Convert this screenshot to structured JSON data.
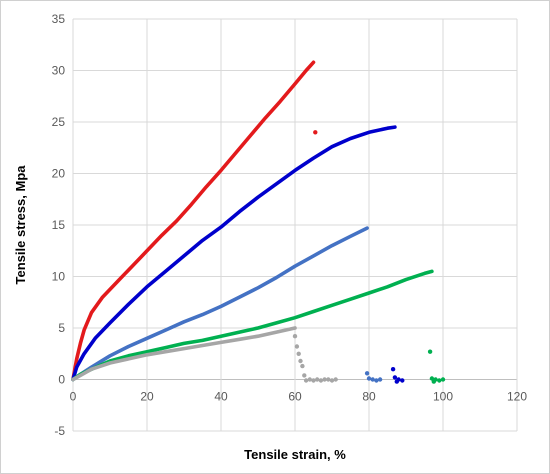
{
  "chart_data": {
    "type": "scatter",
    "title": "",
    "xlabel": "Tensile strain, %",
    "ylabel": "Tensile stress, Mpa",
    "xlim": [
      0,
      120
    ],
    "ylim": [
      -5,
      35
    ],
    "x_ticks": [
      0,
      20,
      40,
      60,
      80,
      100,
      120
    ],
    "y_ticks": [
      -5,
      0,
      5,
      10,
      15,
      20,
      25,
      30,
      35
    ],
    "grid": true,
    "legend": "none",
    "series": [
      {
        "color": "#e31a1c",
        "points": [
          [
            0,
            0
          ],
          [
            0.5,
            1.0
          ],
          [
            1,
            2.0
          ],
          [
            2,
            3.5
          ],
          [
            3,
            4.8
          ],
          [
            5,
            6.5
          ],
          [
            8,
            8.0
          ],
          [
            12,
            9.5
          ],
          [
            16,
            11.0
          ],
          [
            20,
            12.5
          ],
          [
            24,
            14.0
          ],
          [
            28,
            15.4
          ],
          [
            32,
            17.0
          ],
          [
            36,
            18.7
          ],
          [
            40,
            20.3
          ],
          [
            44,
            22.0
          ],
          [
            48,
            23.7
          ],
          [
            52,
            25.4
          ],
          [
            56,
            27.0
          ],
          [
            60,
            28.7
          ],
          [
            63,
            30.0
          ],
          [
            65,
            30.8
          ]
        ],
        "outliers": [
          [
            65.5,
            24.0
          ]
        ]
      },
      {
        "color": "#0000cc",
        "points": [
          [
            0,
            0
          ],
          [
            1,
            1.2
          ],
          [
            3,
            2.5
          ],
          [
            6,
            4.0
          ],
          [
            10,
            5.5
          ],
          [
            15,
            7.3
          ],
          [
            20,
            9.0
          ],
          [
            25,
            10.5
          ],
          [
            30,
            12.0
          ],
          [
            35,
            13.5
          ],
          [
            40,
            14.8
          ],
          [
            45,
            16.3
          ],
          [
            50,
            17.7
          ],
          [
            55,
            19.0
          ],
          [
            60,
            20.3
          ],
          [
            65,
            21.5
          ],
          [
            70,
            22.6
          ],
          [
            75,
            23.4
          ],
          [
            80,
            24.0
          ],
          [
            85,
            24.4
          ],
          [
            87,
            24.5
          ]
        ],
        "outliers": [
          [
            86.5,
            1.0
          ],
          [
            87,
            0.2
          ],
          [
            87.5,
            -0.2
          ],
          [
            88,
            0.0
          ],
          [
            89,
            -0.1
          ]
        ]
      },
      {
        "color": "#4472c4",
        "points": [
          [
            0,
            0
          ],
          [
            2,
            0.5
          ],
          [
            5,
            1.2
          ],
          [
            10,
            2.3
          ],
          [
            15,
            3.2
          ],
          [
            20,
            4.0
          ],
          [
            25,
            4.8
          ],
          [
            30,
            5.6
          ],
          [
            35,
            6.3
          ],
          [
            40,
            7.1
          ],
          [
            45,
            8.0
          ],
          [
            50,
            8.9
          ],
          [
            55,
            9.9
          ],
          [
            60,
            11.0
          ],
          [
            65,
            12.0
          ],
          [
            70,
            13.0
          ],
          [
            75,
            13.9
          ],
          [
            79.5,
            14.7
          ]
        ],
        "outliers": [
          [
            79.5,
            0.6
          ],
          [
            80,
            0.1
          ],
          [
            81,
            0.0
          ],
          [
            82,
            -0.1
          ],
          [
            83,
            0.0
          ]
        ]
      },
      {
        "color": "#00b050",
        "points": [
          [
            0,
            0
          ],
          [
            2,
            0.5
          ],
          [
            5,
            1.0
          ],
          [
            10,
            1.8
          ],
          [
            15,
            2.3
          ],
          [
            20,
            2.7
          ],
          [
            25,
            3.1
          ],
          [
            30,
            3.5
          ],
          [
            35,
            3.8
          ],
          [
            40,
            4.2
          ],
          [
            45,
            4.6
          ],
          [
            50,
            5.0
          ],
          [
            55,
            5.5
          ],
          [
            60,
            6.0
          ],
          [
            65,
            6.6
          ],
          [
            70,
            7.2
          ],
          [
            75,
            7.8
          ],
          [
            80,
            8.4
          ],
          [
            85,
            9.0
          ],
          [
            90,
            9.7
          ],
          [
            95,
            10.3
          ],
          [
            97,
            10.5
          ]
        ],
        "outliers": [
          [
            96.5,
            2.7
          ],
          [
            97,
            0.1
          ],
          [
            97.5,
            -0.2
          ],
          [
            98,
            0.0
          ],
          [
            99,
            -0.1
          ],
          [
            100,
            0.0
          ]
        ]
      },
      {
        "color": "#a6a6a6",
        "points": [
          [
            0,
            0
          ],
          [
            2,
            0.4
          ],
          [
            5,
            1.0
          ],
          [
            10,
            1.6
          ],
          [
            15,
            2.0
          ],
          [
            20,
            2.4
          ],
          [
            25,
            2.7
          ],
          [
            30,
            3.0
          ],
          [
            35,
            3.3
          ],
          [
            40,
            3.6
          ],
          [
            45,
            3.9
          ],
          [
            50,
            4.2
          ],
          [
            55,
            4.6
          ],
          [
            60,
            5.0
          ]
        ],
        "outliers": [
          [
            60,
            4.2
          ],
          [
            60.5,
            3.2
          ],
          [
            61,
            2.5
          ],
          [
            61.5,
            1.8
          ],
          [
            62,
            1.3
          ],
          [
            62.5,
            0.4
          ],
          [
            63,
            -0.1
          ],
          [
            64,
            0.0
          ],
          [
            65,
            -0.1
          ],
          [
            66,
            0.0
          ],
          [
            67,
            -0.1
          ],
          [
            68,
            0.0
          ],
          [
            69,
            0.0
          ],
          [
            70,
            -0.1
          ],
          [
            71,
            0.0
          ]
        ]
      }
    ]
  }
}
